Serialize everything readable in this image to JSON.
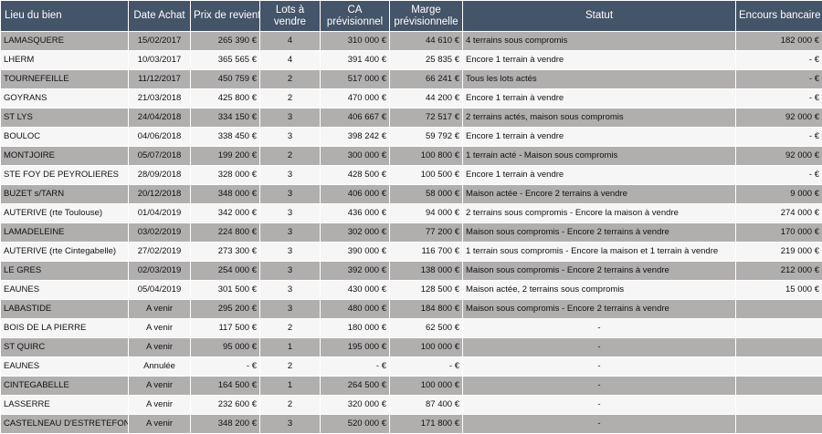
{
  "headers": {
    "lieu": "Lieu du bien",
    "date": "Date Achat",
    "prix": "Prix de revient",
    "lots": "Lots à vendre",
    "ca": "CA prévisionnel",
    "marge": "Marge prévisionnelle",
    "statut": "Statut",
    "encours": "Encours bancaire"
  },
  "rows": [
    {
      "lieu": "LAMASQUERE",
      "date": "15/02/2017",
      "prix": "265 390 €",
      "lots": "4",
      "ca": "310 000 €",
      "marge": "44 610 €",
      "statut": "4 terrains sous compromis",
      "encours": "182 000 €"
    },
    {
      "lieu": "LHERM",
      "date": "10/03/2017",
      "prix": "365 565 €",
      "lots": "4",
      "ca": "391 400 €",
      "marge": "25 835 €",
      "statut": "Encore 1 terrain à vendre",
      "encours": "-   €"
    },
    {
      "lieu": "TOURNEFEILLE",
      "date": "11/12/2017",
      "prix": "450 759 €",
      "lots": "2",
      "ca": "517 000 €",
      "marge": "66 241 €",
      "statut": "Tous les lots actés",
      "encours": "-   €"
    },
    {
      "lieu": "GOYRANS",
      "date": "21/03/2018",
      "prix": "425 800 €",
      "lots": "2",
      "ca": "470 000 €",
      "marge": "44 200 €",
      "statut": "Encore 1 terrain à vendre",
      "encours": "-   €"
    },
    {
      "lieu": "ST LYS",
      "date": "24/04/2018",
      "prix": "334 150 €",
      "lots": "3",
      "ca": "406 667 €",
      "marge": "72 517 €",
      "statut": "2 terrains actés, maison sous compromis",
      "encours": "92 000 €"
    },
    {
      "lieu": "BOULOC",
      "date": "04/06/2018",
      "prix": "338 450 €",
      "lots": "3",
      "ca": "398 242 €",
      "marge": "59 792 €",
      "statut": "Encore 1 terrain à vendre",
      "encours": "-   €"
    },
    {
      "lieu": "MONTJOIRE",
      "date": "05/07/2018",
      "prix": "199 200 €",
      "lots": "2",
      "ca": "300 000 €",
      "marge": "100 800 €",
      "statut": "1 terrain acté - Maison sous compromis",
      "encours": "92 000 €"
    },
    {
      "lieu": "STE FOY DE PEYROLIERES",
      "date": "28/09/2018",
      "prix": "328 000 €",
      "lots": "3",
      "ca": "428 500 €",
      "marge": "100 500 €",
      "statut": "Encore 1 terrain à vendre",
      "encours": "-   €"
    },
    {
      "lieu": "BUZET s/TARN",
      "date": "20/12/2018",
      "prix": "348 000 €",
      "lots": "3",
      "ca": "406 000 €",
      "marge": "58 000 €",
      "statut": "Maison actée - Encore 2 terrains à vendre",
      "encours": "9 000 €"
    },
    {
      "lieu": "AUTERIVE (rte Toulouse)",
      "date": "01/04/2019",
      "prix": "342 000 €",
      "lots": "3",
      "ca": "436 000 €",
      "marge": "94 000 €",
      "statut": "2 terrains sous compromis - Encore la maison à vendre",
      "encours": "274 000 €"
    },
    {
      "lieu": "LAMADELEINE",
      "date": "03/02/2019",
      "prix": "224 800 €",
      "lots": "3",
      "ca": "302 000 €",
      "marge": "77 200 €",
      "statut": "Maison sous compromis - Encore 2 terrains à vendre",
      "encours": "170 000 €"
    },
    {
      "lieu": "AUTERIVE (rte Cintegabelle)",
      "date": "27/02/2019",
      "prix": "273 300 €",
      "lots": "3",
      "ca": "390 000 €",
      "marge": "116 700 €",
      "statut": "1 terrain sous compromis - Encore la maison et 1 terrain à vendre",
      "encours": "219 000 €"
    },
    {
      "lieu": "LE GRES",
      "date": "02/03/2019",
      "prix": "254 000 €",
      "lots": "3",
      "ca": "392 000 €",
      "marge": "138 000 €",
      "statut": "Maison sous compromis - Encore 2 terrains à vendre",
      "encours": "212 000 €"
    },
    {
      "lieu": "EAUNES",
      "date": "05/04/2019",
      "prix": "301 500 €",
      "lots": "3",
      "ca": "430 000 €",
      "marge": "128 500 €",
      "statut": "Maison actée, 2 terrains sous compromis",
      "encours": "15 000 €"
    },
    {
      "lieu": "LABASTIDE",
      "date": "A venir",
      "prix": "295 200 €",
      "lots": "3",
      "ca": "480 000 €",
      "marge": "184 800 €",
      "statut": "Maison sous compromis - Encore 2 terrains à vendre",
      "encours": ""
    },
    {
      "lieu": "BOIS DE LA PIERRE",
      "date": "A venir",
      "prix": "117 500 €",
      "lots": "2",
      "ca": "180 000 €",
      "marge": "62 500 €",
      "statut": "-",
      "encours": ""
    },
    {
      "lieu": "ST QUIRC",
      "date": "A venir",
      "prix": "95 000 €",
      "lots": "1",
      "ca": "195 000 €",
      "marge": "100 000 €",
      "statut": "-",
      "encours": ""
    },
    {
      "lieu": "EAUNES",
      "date": "Annulée",
      "prix": "-   €",
      "lots": "2",
      "ca": "-   €",
      "marge": "-   €",
      "statut": "-",
      "encours": ""
    },
    {
      "lieu": "CINTEGABELLE",
      "date": "A venir",
      "prix": "164 500 €",
      "lots": "1",
      "ca": "264 500 €",
      "marge": "100 000 €",
      "statut": "-",
      "encours": ""
    },
    {
      "lieu": "LASSERRE",
      "date": "A venir",
      "prix": "232 600 €",
      "lots": "2",
      "ca": "320 000 €",
      "marge": "87 400 €",
      "statut": "-",
      "encours": ""
    },
    {
      "lieu": "CASTELNEAU D'ESTRETEFONDS",
      "date": "A venir",
      "prix": "348 200 €",
      "lots": "3",
      "ca": "520 000 €",
      "marge": "171 800 €",
      "statut": "-",
      "encours": ""
    }
  ]
}
